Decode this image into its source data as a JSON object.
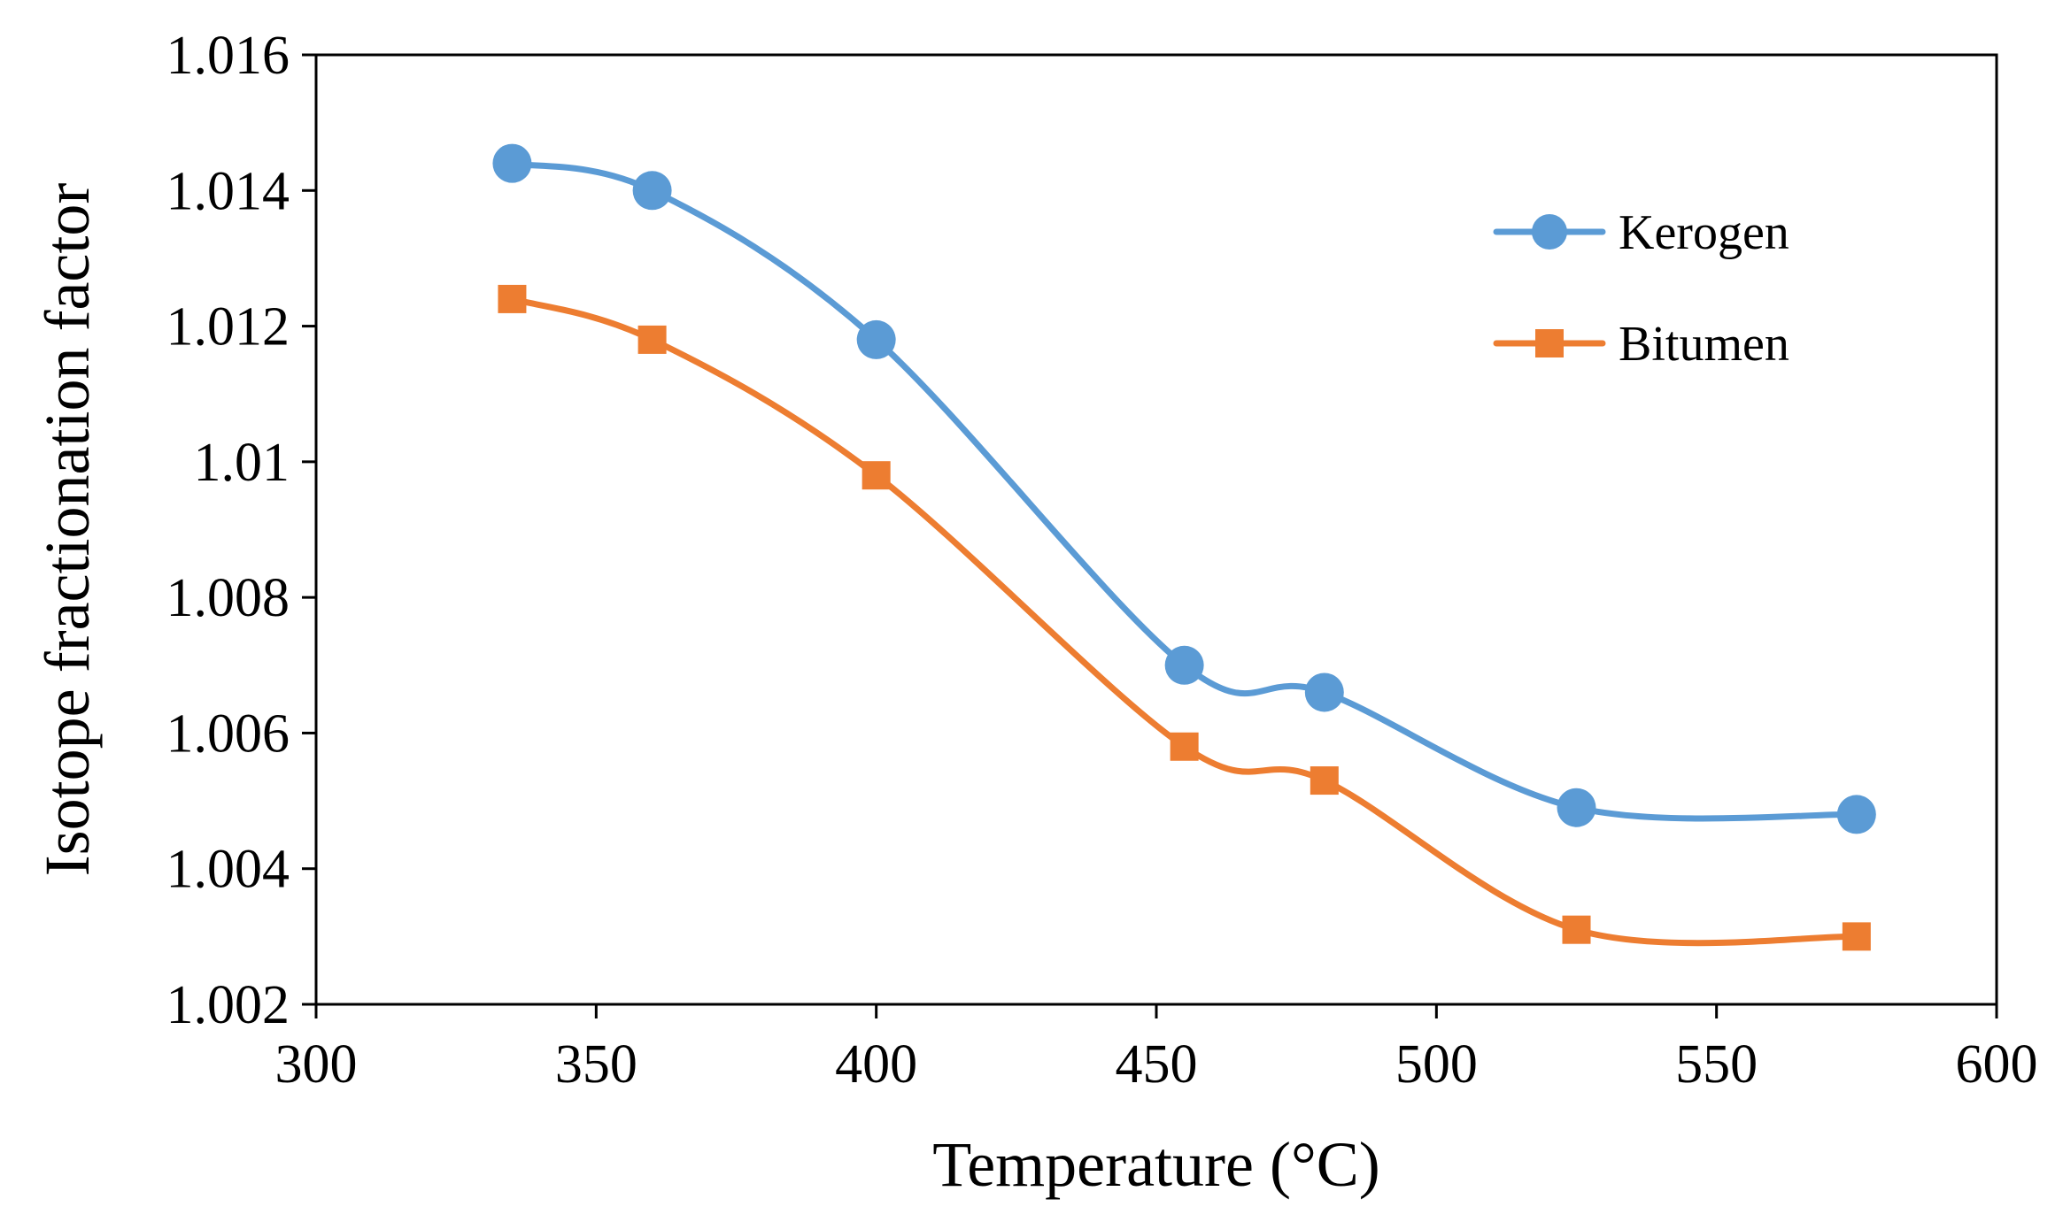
{
  "chart_data": {
    "type": "line",
    "title": "",
    "xlabel": "Temperature (°C)",
    "ylabel": "Isotope fractionation factor",
    "xlim": [
      300,
      600
    ],
    "ylim": [
      1.002,
      1.016
    ],
    "x_ticks": [
      300,
      350,
      400,
      450,
      500,
      550,
      600
    ],
    "x_tick_labels": [
      "300",
      "350",
      "400",
      "450",
      "500",
      "550",
      "600"
    ],
    "y_ticks": [
      1.002,
      1.004,
      1.006,
      1.008,
      1.01,
      1.012,
      1.014,
      1.016
    ],
    "y_tick_labels": [
      "1.002",
      "1.004",
      "1.006",
      "1.008",
      "1.01",
      "1.012",
      "1.014",
      "1.016"
    ],
    "grid": false,
    "smooth": true,
    "legend_position": "top-right",
    "series": [
      {
        "name": "Kerogen",
        "color": "#5B9BD5",
        "marker": "circle",
        "x": [
          335,
          360,
          400,
          455,
          480,
          525,
          575
        ],
        "y": [
          1.0144,
          1.014,
          1.0118,
          1.007,
          1.0066,
          1.0049,
          1.0048
        ]
      },
      {
        "name": "Bitumen",
        "color": "#ED7D31",
        "marker": "square",
        "x": [
          335,
          360,
          400,
          455,
          480,
          525,
          575
        ],
        "y": [
          1.0124,
          1.0118,
          1.0098,
          1.0058,
          1.0053,
          1.0031,
          1.003
        ]
      }
    ]
  }
}
